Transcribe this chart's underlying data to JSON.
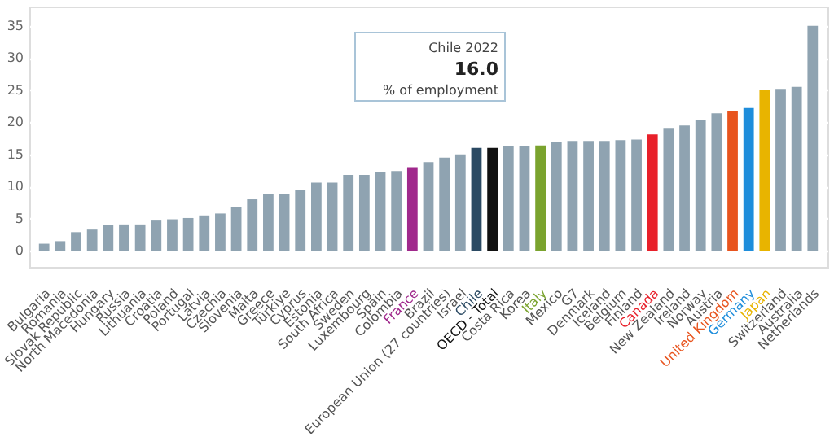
{
  "chart_data": {
    "type": "bar",
    "categories": [
      "Bulgaria",
      "Romania",
      "Slovak Republic",
      "North Macedonia",
      "Hungary",
      "Russia",
      "Lithuania",
      "Croatia",
      "Poland",
      "Portugal",
      "Latvia",
      "Czechia",
      "Slovenia",
      "Malta",
      "Greece",
      "Türkiye",
      "Cyprus",
      "Estonia",
      "South Africa",
      "Sweden",
      "Luxembourg",
      "Spain",
      "Colombia",
      "France",
      "Brazil",
      "European Union (27 countries)",
      "Israel",
      "Chile",
      "OECD - Total",
      "Costa Rica",
      "Korea",
      "Italy",
      "Mexico",
      "G7",
      "Denmark",
      "Iceland",
      "Belgium",
      "Finland",
      "Canada",
      "New Zealand",
      "Ireland",
      "Norway",
      "Austria",
      "United Kingdom",
      "Germany",
      "Japan",
      "Switzerland",
      "Australia",
      "Netherlands"
    ],
    "values": [
      1.1,
      1.5,
      2.9,
      3.3,
      4.0,
      4.1,
      4.1,
      4.7,
      4.9,
      5.1,
      5.5,
      5.8,
      6.8,
      8.0,
      8.8,
      8.9,
      9.5,
      10.6,
      10.6,
      11.8,
      11.8,
      12.2,
      12.4,
      13.0,
      13.8,
      14.5,
      15.0,
      16.0,
      16.0,
      16.3,
      16.3,
      16.4,
      16.9,
      17.1,
      17.1,
      17.1,
      17.2,
      17.3,
      18.1,
      19.1,
      19.5,
      20.3,
      21.4,
      21.8,
      22.2,
      25.0,
      25.2,
      25.5,
      35.0
    ],
    "colors": [
      "#8fa3b1",
      "#8fa3b1",
      "#8fa3b1",
      "#8fa3b1",
      "#8fa3b1",
      "#8fa3b1",
      "#8fa3b1",
      "#8fa3b1",
      "#8fa3b1",
      "#8fa3b1",
      "#8fa3b1",
      "#8fa3b1",
      "#8fa3b1",
      "#8fa3b1",
      "#8fa3b1",
      "#8fa3b1",
      "#8fa3b1",
      "#8fa3b1",
      "#8fa3b1",
      "#8fa3b1",
      "#8fa3b1",
      "#8fa3b1",
      "#8fa3b1",
      "#a0288c",
      "#8fa3b1",
      "#8fa3b1",
      "#8fa3b1",
      "#2b4a63",
      "#111111",
      "#8fa3b1",
      "#8fa3b1",
      "#7aa32e",
      "#8fa3b1",
      "#8fa3b1",
      "#8fa3b1",
      "#8fa3b1",
      "#8fa3b1",
      "#8fa3b1",
      "#e8202a",
      "#8fa3b1",
      "#8fa3b1",
      "#8fa3b1",
      "#8fa3b1",
      "#e8541e",
      "#1e8ddb",
      "#e8b400",
      "#8fa3b1",
      "#8fa3b1",
      "#8fa3b1"
    ],
    "ylim": [
      -2.5,
      38
    ],
    "yticks": [
      0,
      5,
      10,
      15,
      20,
      25,
      30,
      35
    ],
    "grid": true,
    "annotations": [
      "Chile 2022",
      "16.0",
      "% of employment"
    ]
  }
}
